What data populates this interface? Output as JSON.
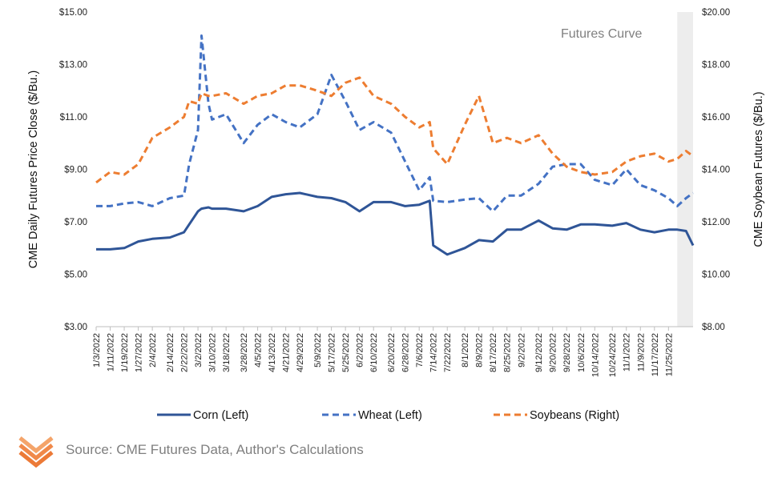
{
  "chart_data": {
    "type": "line",
    "annotation": "Futures Curve",
    "ylabel_left": "CME Daily Futures Price Close ($/Bu.)",
    "ylabel_right": "CME Soybean Futures ($/Bu.)",
    "left_ticks": [
      "$3.00",
      "$5.00",
      "$7.00",
      "$9.00",
      "$11.00",
      "$13.00",
      "$15.00"
    ],
    "right_ticks": [
      "$8.00",
      "$10.00",
      "$12.00",
      "$14.00",
      "$16.00",
      "$18.00",
      "$20.00"
    ],
    "ylim_left": [
      3,
      15
    ],
    "ylim_right": [
      8,
      20
    ],
    "grid": false,
    "legend_position": "bottom",
    "shaded_region": {
      "from": "11/30/2022",
      "to": "12/9/2022",
      "color": "#ededed",
      "meaning": "Futures Curve"
    },
    "x_tick_labels": [
      "1/3/2022",
      "1/11/2022",
      "1/19/2022",
      "1/27/2022",
      "2/4/2022",
      "2/14/2022",
      "2/22/2022",
      "3/2/2022",
      "3/10/2022",
      "3/18/2022",
      "3/28/2022",
      "4/5/2022",
      "4/13/2022",
      "4/21/2022",
      "4/29/2022",
      "5/9/2022",
      "5/17/2022",
      "5/25/2022",
      "6/2/2022",
      "6/10/2022",
      "6/20/2022",
      "6/28/2022",
      "7/6/2022",
      "7/14/2022",
      "7/22/2022",
      "8/1/2022",
      "8/9/2022",
      "8/17/2022",
      "8/25/2022",
      "9/2/2022",
      "9/12/2022",
      "9/20/2022",
      "9/28/2022",
      "10/6/2022",
      "10/14/2022",
      "10/24/2022",
      "11/1/2022",
      "11/9/2022",
      "11/17/2022",
      "11/25/2022"
    ],
    "x": [
      "1/3",
      "1/11",
      "1/19",
      "1/27",
      "2/4",
      "2/14",
      "2/22",
      "2/25",
      "3/2",
      "3/4",
      "3/8",
      "3/10",
      "3/18",
      "3/28",
      "4/5",
      "4/13",
      "4/21",
      "4/29",
      "5/9",
      "5/17",
      "5/25",
      "6/2",
      "6/10",
      "6/20",
      "6/28",
      "7/6",
      "7/12",
      "7/14",
      "7/22",
      "8/1",
      "8/9",
      "8/17",
      "8/25",
      "9/2",
      "9/12",
      "9/20",
      "9/28",
      "10/6",
      "10/14",
      "10/24",
      "11/1",
      "11/9",
      "11/17",
      "11/25",
      "11/30",
      "12/5",
      "12/9"
    ],
    "series": [
      {
        "name": "Corn (Left)",
        "axis": "left",
        "color": "#2f5597",
        "dash": "solid",
        "values": [
          5.95,
          5.95,
          6.0,
          6.25,
          6.35,
          6.4,
          6.6,
          6.9,
          7.4,
          7.5,
          7.55,
          7.5,
          7.5,
          7.4,
          7.6,
          7.95,
          8.05,
          8.1,
          7.95,
          7.9,
          7.75,
          7.4,
          7.75,
          7.75,
          7.6,
          7.65,
          7.8,
          6.1,
          5.75,
          6.0,
          6.3,
          6.25,
          6.7,
          6.7,
          7.05,
          6.75,
          6.7,
          6.9,
          6.9,
          6.85,
          6.95,
          6.7,
          6.6,
          6.7,
          6.7,
          6.65,
          6.1
        ]
      },
      {
        "name": "Wheat (Left)",
        "axis": "left",
        "color": "#4472c4",
        "dash": "dashed",
        "values": [
          7.6,
          7.6,
          7.7,
          7.75,
          7.6,
          7.9,
          8.0,
          9.2,
          10.5,
          14.1,
          11.5,
          10.9,
          11.1,
          10.0,
          10.7,
          11.1,
          10.8,
          10.6,
          11.1,
          12.6,
          11.6,
          10.5,
          10.8,
          10.4,
          9.3,
          8.2,
          8.7,
          7.8,
          7.75,
          7.85,
          7.9,
          7.4,
          8.0,
          8.0,
          8.45,
          9.1,
          9.2,
          9.2,
          8.6,
          8.4,
          9.0,
          8.4,
          8.2,
          7.9,
          7.6,
          7.9,
          8.1
        ]
      },
      {
        "name": "Soybeans (Right)",
        "axis": "right",
        "color": "#ed7d31",
        "dash": "dashed",
        "values": [
          13.5,
          13.9,
          13.8,
          14.2,
          15.2,
          15.6,
          16.0,
          16.6,
          16.5,
          16.9,
          16.8,
          16.8,
          16.9,
          16.5,
          16.8,
          16.9,
          17.2,
          17.2,
          17.0,
          16.8,
          17.3,
          17.5,
          16.8,
          16.5,
          16.0,
          15.6,
          15.8,
          14.8,
          14.2,
          15.7,
          16.8,
          15.0,
          15.2,
          15.0,
          15.3,
          14.6,
          14.1,
          13.9,
          13.8,
          13.9,
          14.3,
          14.5,
          14.6,
          14.3,
          14.4,
          14.7,
          14.5
        ]
      }
    ]
  },
  "footer": {
    "source": "Source: CME Futures Data, Author's Calculations",
    "logo_icon": "chevron-stack-logo-icon"
  }
}
